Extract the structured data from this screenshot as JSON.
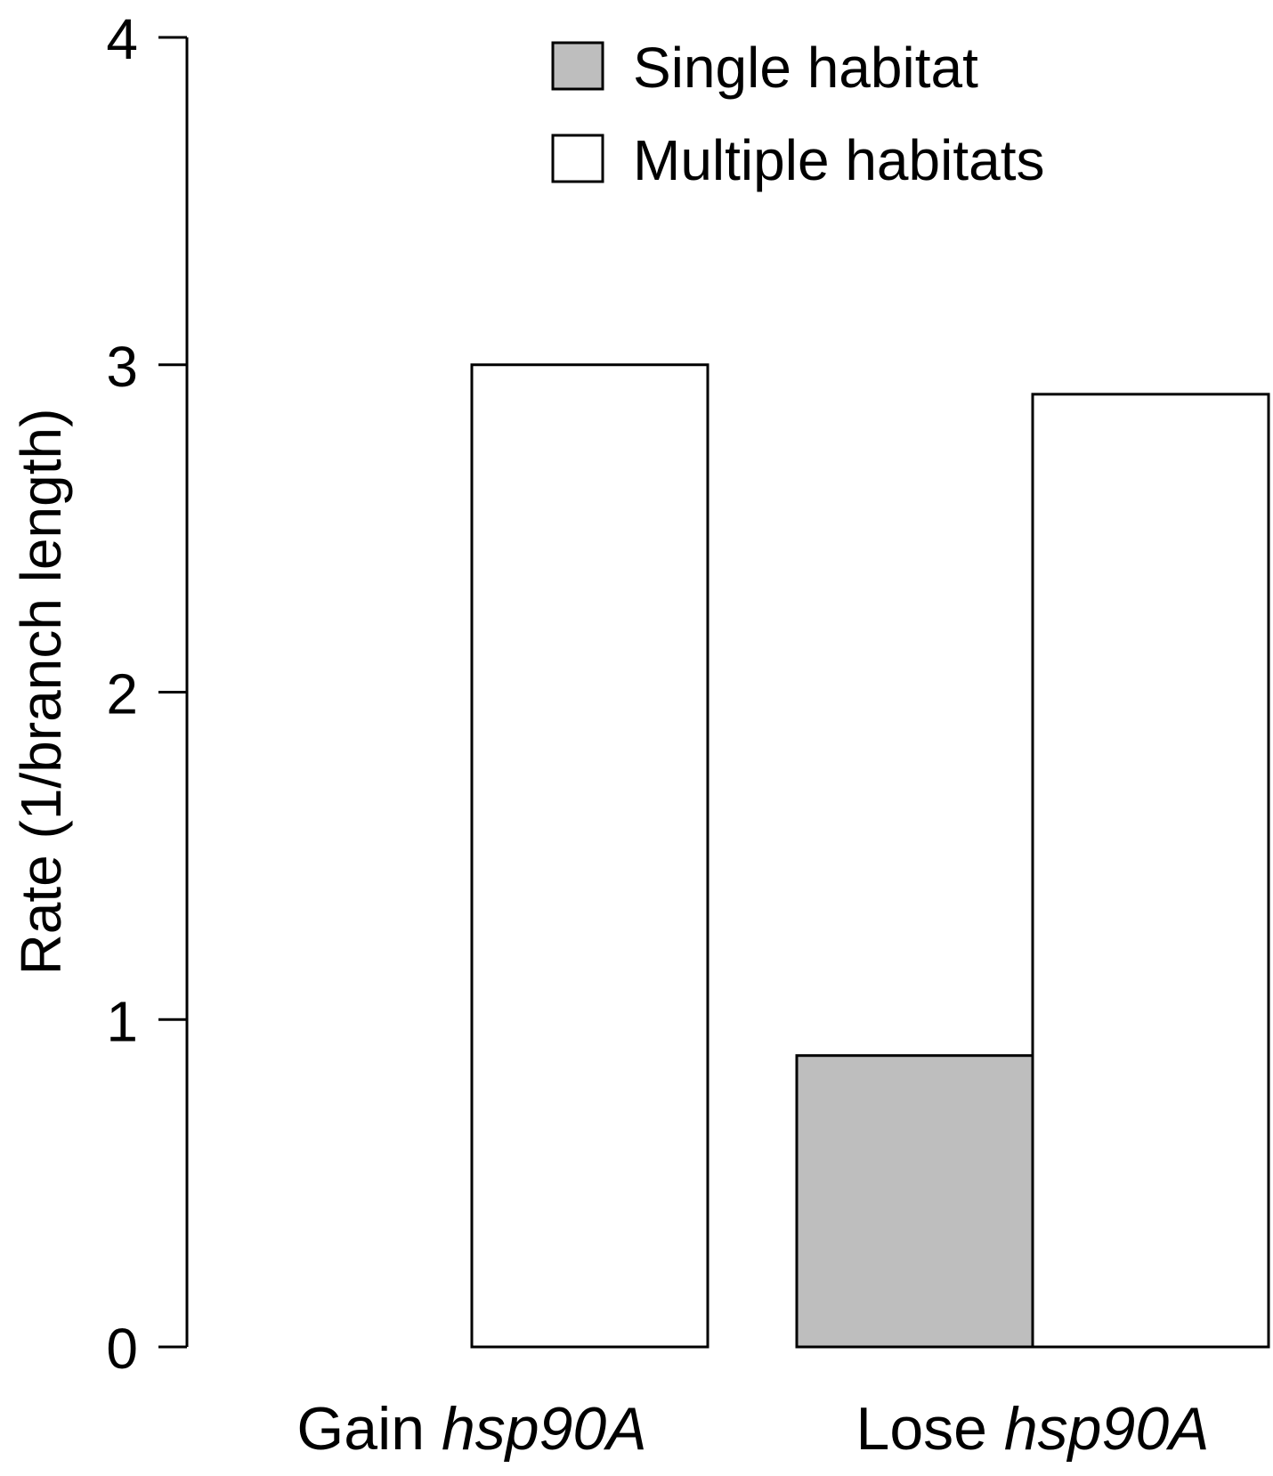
{
  "chart_data": {
    "type": "bar",
    "categories": [
      {
        "label": "Gain",
        "italic": "hsp90A"
      },
      {
        "label": "Lose",
        "italic": "hsp90A"
      }
    ],
    "series": [
      {
        "name": "Single habitat",
        "color": "#bebebe",
        "values": [
          0,
          0.89
        ]
      },
      {
        "name": "Multiple habitats",
        "color": "#ffffff",
        "values": [
          3.0,
          2.91
        ]
      }
    ],
    "ylabel": "Rate (1/branch length)",
    "xlabel": "",
    "ylim": [
      0,
      4
    ],
    "yticks": [
      "0",
      "1",
      "2",
      "3",
      "4"
    ],
    "grid": false,
    "legend": "top-right"
  }
}
